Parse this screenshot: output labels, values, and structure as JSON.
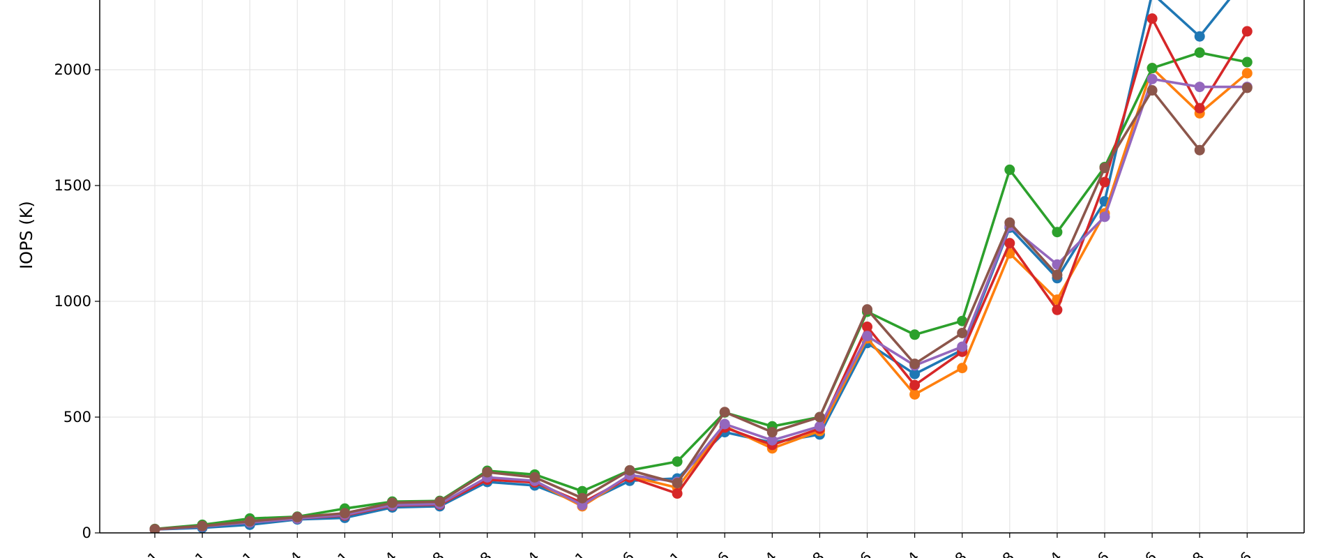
{
  "chart_data": {
    "type": "line",
    "title": "",
    "xlabel": "",
    "ylabel": "IOPS (K)",
    "ylim": [
      0,
      2300
    ],
    "yticks": [
      0,
      500,
      1000,
      1500,
      2000
    ],
    "grid": true,
    "legend": "none visible",
    "x_tick_labels_visible_fragments": [
      "1",
      "1",
      "1",
      "4",
      "1",
      "4",
      "8",
      "8",
      "4",
      "1",
      "6",
      "1",
      "6",
      "4",
      "8",
      "6",
      "4",
      "8",
      "8",
      "4",
      "6",
      "6",
      "8",
      "6"
    ],
    "series": [
      {
        "color": "#1f77b4",
        "values": [
          15,
          22,
          35,
          58,
          65,
          110,
          115,
          220,
          205,
          125,
          225,
          235,
          435,
          390,
          425,
          820,
          686,
          790,
          1318,
          1100,
          1432,
          2330,
          2144,
          2400
        ]
      },
      {
        "color": "#ff7f0e",
        "values": [
          15,
          30,
          50,
          65,
          80,
          120,
          125,
          235,
          220,
          115,
          245,
          195,
          460,
          365,
          440,
          840,
          598,
          712,
          1207,
          1007,
          1380,
          2007,
          1812,
          1985
        ]
      },
      {
        "color": "#2ca02c",
        "values": [
          17,
          35,
          62,
          70,
          105,
          135,
          138,
          268,
          252,
          180,
          270,
          308,
          520,
          460,
          500,
          955,
          856,
          915,
          1568,
          1299,
          1580,
          2007,
          2074,
          2033
        ]
      },
      {
        "color": "#d62728",
        "values": [
          15,
          28,
          45,
          62,
          75,
          118,
          122,
          230,
          218,
          130,
          240,
          170,
          455,
          380,
          450,
          890,
          638,
          782,
          1251,
          963,
          1515,
          2221,
          1834,
          2166
        ]
      },
      {
        "color": "#9467bd",
        "values": [
          15,
          28,
          45,
          62,
          78,
          120,
          125,
          240,
          225,
          120,
          250,
          220,
          470,
          400,
          460,
          850,
          723,
          804,
          1325,
          1159,
          1365,
          1960,
          1926,
          1926
        ]
      },
      {
        "color": "#8c564b",
        "values": [
          16,
          30,
          50,
          68,
          85,
          130,
          135,
          262,
          240,
          150,
          270,
          215,
          522,
          435,
          500,
          965,
          730,
          863,
          1340,
          1114,
          1576,
          1911,
          1653,
          1922
        ]
      }
    ]
  }
}
